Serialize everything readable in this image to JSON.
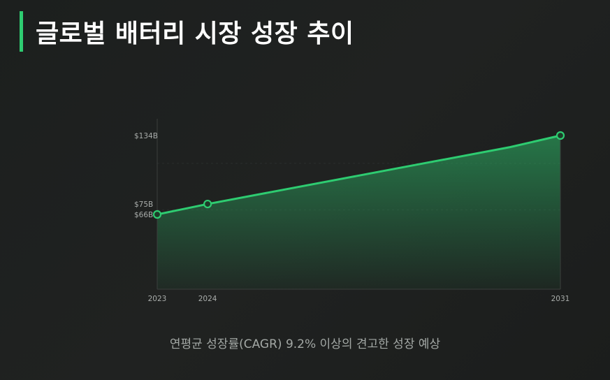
{
  "title": "글로벌 배터리 시장 성장 추이",
  "caption": "연평균 성장률(CAGR) 9.2% 이상의 견고한 성장 예상",
  "colors": {
    "accent": "#2ecc71",
    "background": "#1e201f",
    "line": "#2ecc71",
    "point_fill": "#1e3a29"
  },
  "chart_data": {
    "type": "area",
    "title": "",
    "xlabel": "",
    "ylabel": "",
    "x": [
      2023,
      2024,
      2030,
      2031
    ],
    "values": [
      66,
      75,
      124,
      134
    ],
    "markers": [
      true,
      true,
      false,
      true
    ],
    "x_ticks": [
      "2023",
      "2024",
      "2031"
    ],
    "x_tick_values": [
      2023,
      2024,
      2031
    ],
    "y_ticks": [
      "$66B",
      "$75B",
      "$134B"
    ],
    "y_tick_values": [
      66,
      75,
      134
    ],
    "xlim": [
      2023,
      2031
    ],
    "ylim": [
      0,
      150
    ],
    "grid": true,
    "legend": "none"
  }
}
